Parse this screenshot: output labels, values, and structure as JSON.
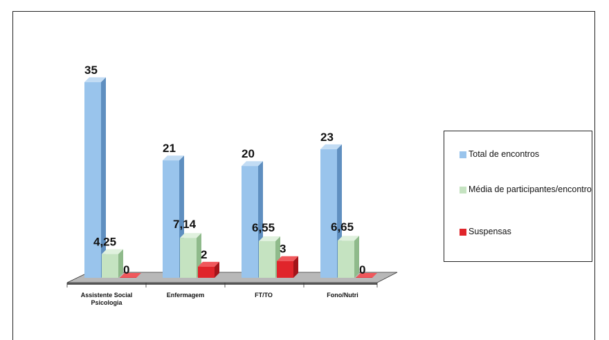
{
  "chart_data": {
    "type": "bar",
    "categories": [
      [
        "Assistente Social",
        "Psicologia"
      ],
      [
        "Enfermagem"
      ],
      [
        "FT/TO"
      ],
      [
        "Fono/Nutri"
      ]
    ],
    "series": [
      {
        "name": "Total de encontros",
        "values": [
          35,
          21,
          20,
          23
        ],
        "labels": [
          "35",
          "21",
          "20",
          "23"
        ],
        "color": "#99c4ec",
        "side": "#5f8fc0",
        "top": "#c2dcf4"
      },
      {
        "name": "Média de participantes/encontro",
        "values": [
          4.25,
          7.14,
          6.55,
          6.65
        ],
        "labels": [
          "4,25",
          "7,14",
          "6,55",
          "6,65"
        ],
        "color": "#c5e3c1",
        "side": "#8fba8b",
        "top": "#e0f1de"
      },
      {
        "name": "Suspensas",
        "values": [
          0,
          2,
          3,
          0
        ],
        "labels": [
          "0",
          "2",
          "3",
          "0"
        ],
        "color": "#e0252b",
        "side": "#a3151a",
        "top": "#f0585c"
      }
    ],
    "ylim": [
      0,
      35
    ],
    "legend_position": "right",
    "three_d": true,
    "grid": false
  }
}
